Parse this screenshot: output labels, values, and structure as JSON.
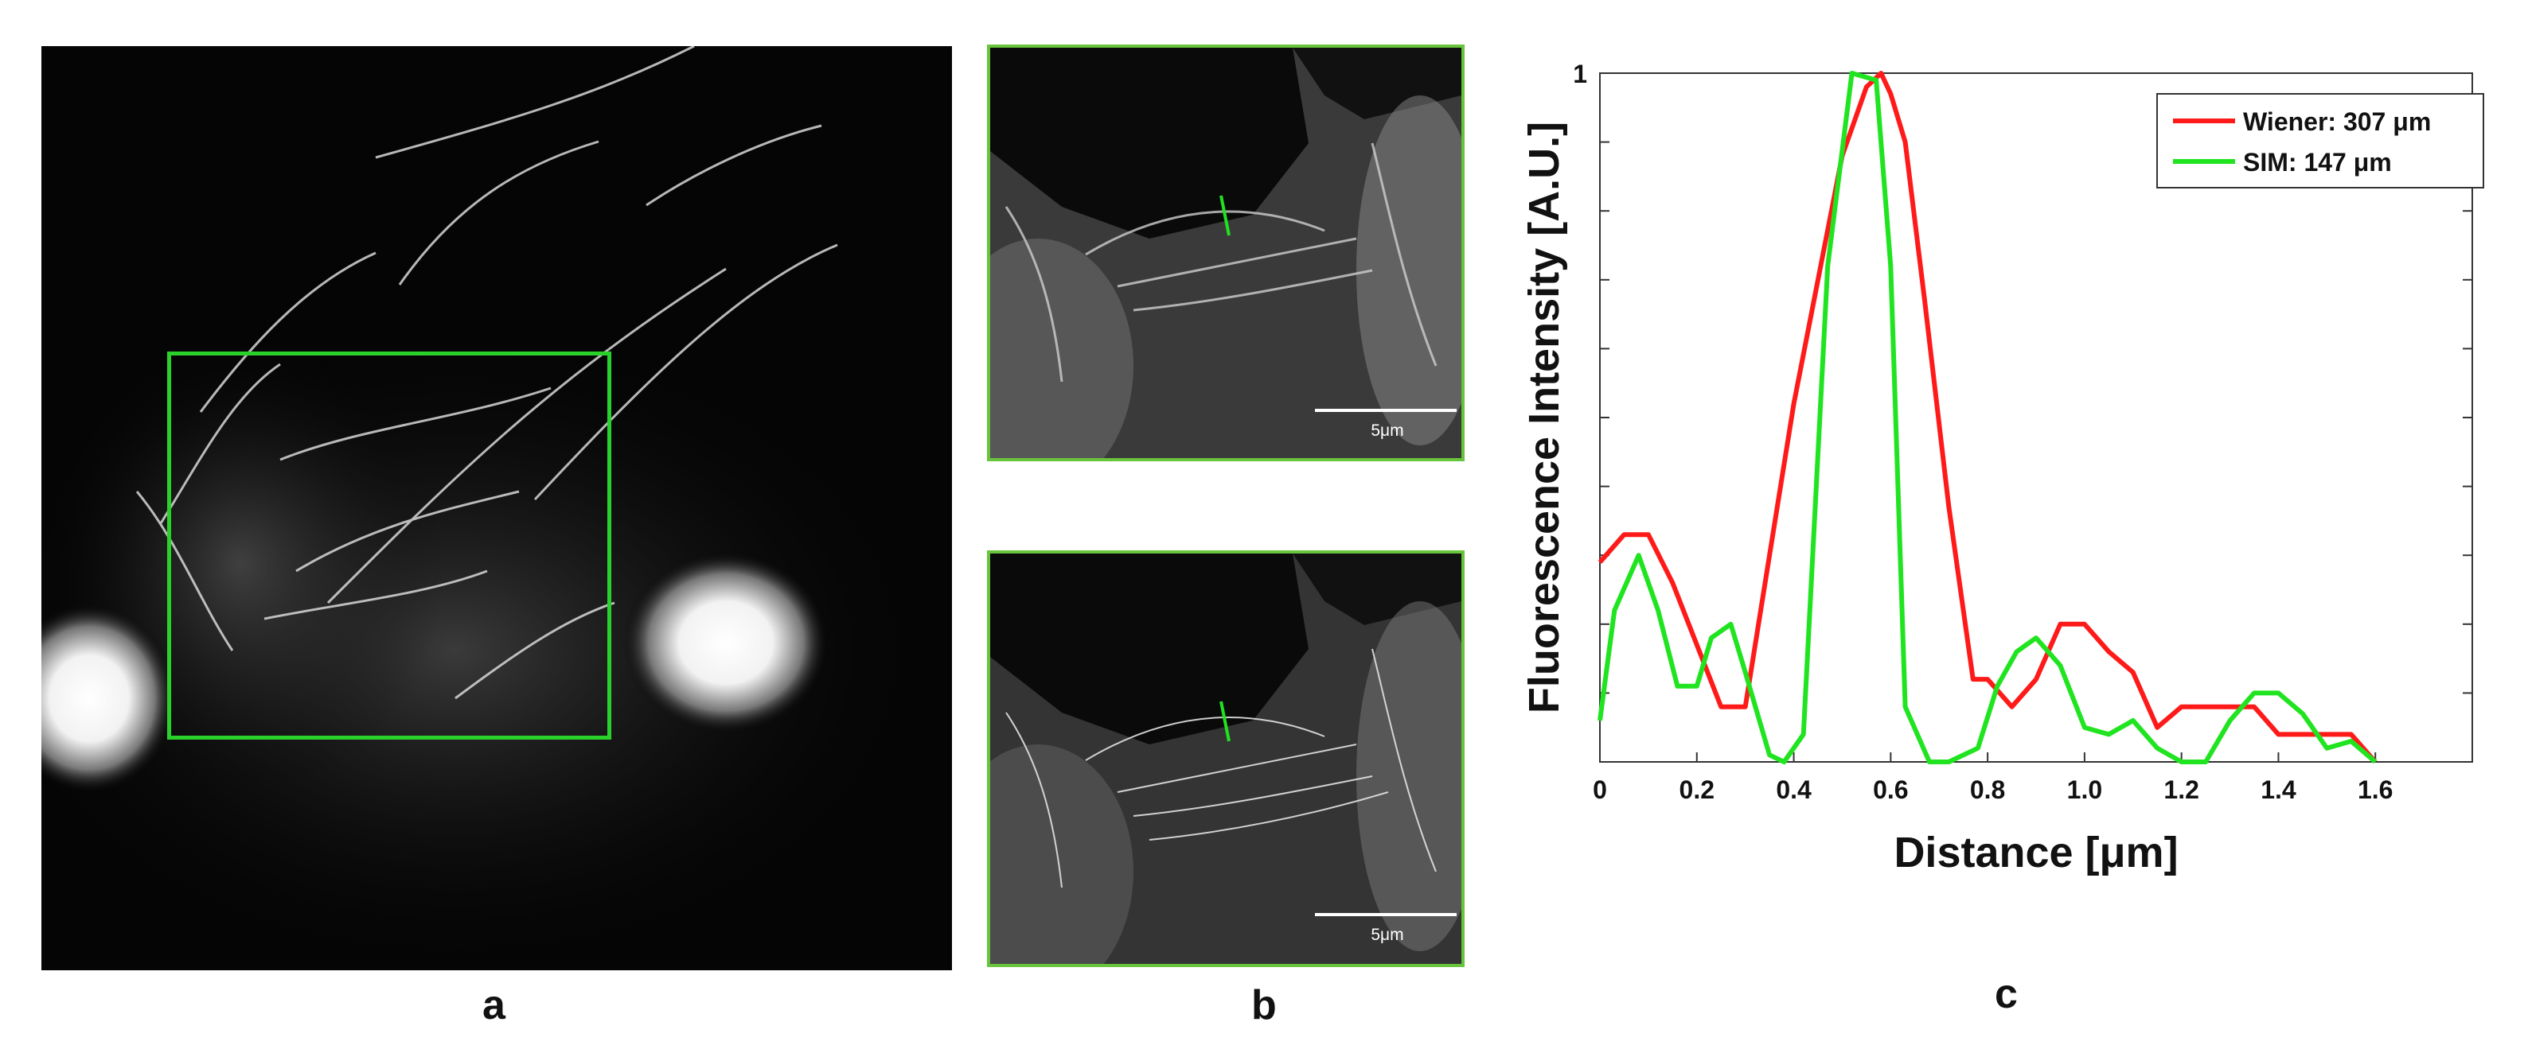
{
  "panels": {
    "a": {
      "label": "a"
    },
    "b": {
      "label": "b",
      "scale_bar_label": "5μm"
    },
    "c": {
      "label": "c"
    }
  },
  "colors": {
    "roi": "#2bd12b",
    "inset_border": "#67c43c",
    "wiener": "#ff1a1a",
    "sim": "#1fe41f"
  },
  "chart_data": {
    "type": "line",
    "xlabel": "Distance [μm]",
    "ylabel": "Fluorescence Intensity [A.U.]",
    "xlim": [
      0,
      1.8
    ],
    "ylim": [
      0,
      1
    ],
    "xticks": [
      0,
      0.2,
      0.4,
      0.6,
      0.8,
      1.0,
      1.2,
      1.4,
      1.6
    ],
    "xtick_labels": [
      "0",
      "0.2",
      "0.4",
      "0.6",
      "0.8",
      "1.0",
      "1.2",
      "1.4",
      "1.6"
    ],
    "yticks": [
      0,
      0.1,
      0.2,
      0.3,
      0.4,
      0.5,
      0.6,
      0.7,
      0.8,
      0.9,
      1.0
    ],
    "ytick_labels": [
      "",
      "",
      "",
      "",
      "",
      "",
      "",
      "",
      "",
      "",
      "1"
    ],
    "legend_position": "top-right",
    "series": [
      {
        "name": "Wiener: 307 μm",
        "color": "#ff1a1a",
        "x": [
          0,
          0.05,
          0.1,
          0.15,
          0.2,
          0.25,
          0.3,
          0.35,
          0.4,
          0.45,
          0.5,
          0.55,
          0.58,
          0.6,
          0.63,
          0.67,
          0.72,
          0.77,
          0.8,
          0.85,
          0.9,
          0.95,
          1.0,
          1.05,
          1.1,
          1.15,
          1.2,
          1.25,
          1.3,
          1.35,
          1.4,
          1.45,
          1.5,
          1.55,
          1.6
        ],
        "y": [
          0.29,
          0.33,
          0.33,
          0.26,
          0.17,
          0.08,
          0.08,
          0.3,
          0.52,
          0.7,
          0.88,
          0.98,
          1.0,
          0.97,
          0.9,
          0.67,
          0.37,
          0.12,
          0.12,
          0.08,
          0.12,
          0.2,
          0.2,
          0.16,
          0.13,
          0.05,
          0.08,
          0.08,
          0.08,
          0.08,
          0.04,
          0.04,
          0.04,
          0.04,
          0.0
        ]
      },
      {
        "name": "SIM: 147 μm",
        "color": "#1fe41f",
        "x": [
          0,
          0.03,
          0.08,
          0.12,
          0.16,
          0.2,
          0.23,
          0.27,
          0.3,
          0.35,
          0.38,
          0.42,
          0.47,
          0.52,
          0.57,
          0.6,
          0.63,
          0.68,
          0.72,
          0.78,
          0.82,
          0.86,
          0.9,
          0.95,
          1.0,
          1.05,
          1.1,
          1.15,
          1.2,
          1.25,
          1.3,
          1.35,
          1.4,
          1.45,
          1.5,
          1.55,
          1.6
        ],
        "y": [
          0.06,
          0.22,
          0.3,
          0.22,
          0.11,
          0.11,
          0.18,
          0.2,
          0.13,
          0.01,
          0.0,
          0.04,
          0.72,
          1.0,
          0.99,
          0.72,
          0.08,
          0.0,
          0.0,
          0.02,
          0.11,
          0.16,
          0.18,
          0.14,
          0.05,
          0.04,
          0.06,
          0.02,
          0.0,
          0.0,
          0.06,
          0.1,
          0.1,
          0.07,
          0.02,
          0.03,
          0.0
        ]
      }
    ]
  }
}
